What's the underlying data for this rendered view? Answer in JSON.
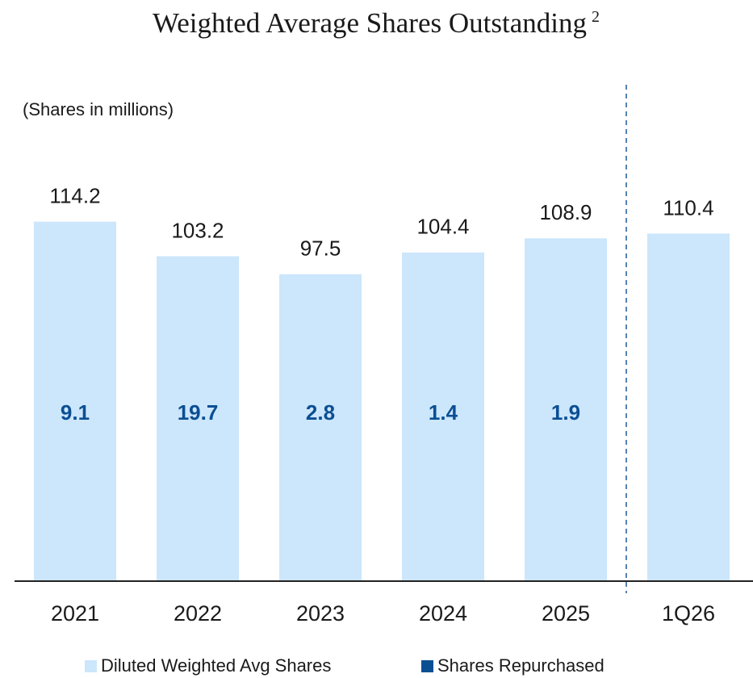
{
  "chart_data": {
    "type": "bar",
    "title": "Weighted Average Shares Outstanding",
    "title_note": "2",
    "subtitle": "(Shares in millions)",
    "categories": [
      "2021",
      "2022",
      "2023",
      "2024",
      "2025",
      "1Q26"
    ],
    "series": [
      {
        "name": "Diluted Weighted Avg Shares",
        "color": "#cce6fb",
        "values": [
          114.2,
          103.2,
          97.5,
          104.4,
          108.9,
          110.4
        ]
      },
      {
        "name": "Shares Repurchased",
        "color": "#0b4f93",
        "values": [
          9.1,
          19.7,
          2.8,
          1.4,
          1.9,
          null
        ]
      }
    ],
    "ylim": [
      0,
      120
    ]
  }
}
